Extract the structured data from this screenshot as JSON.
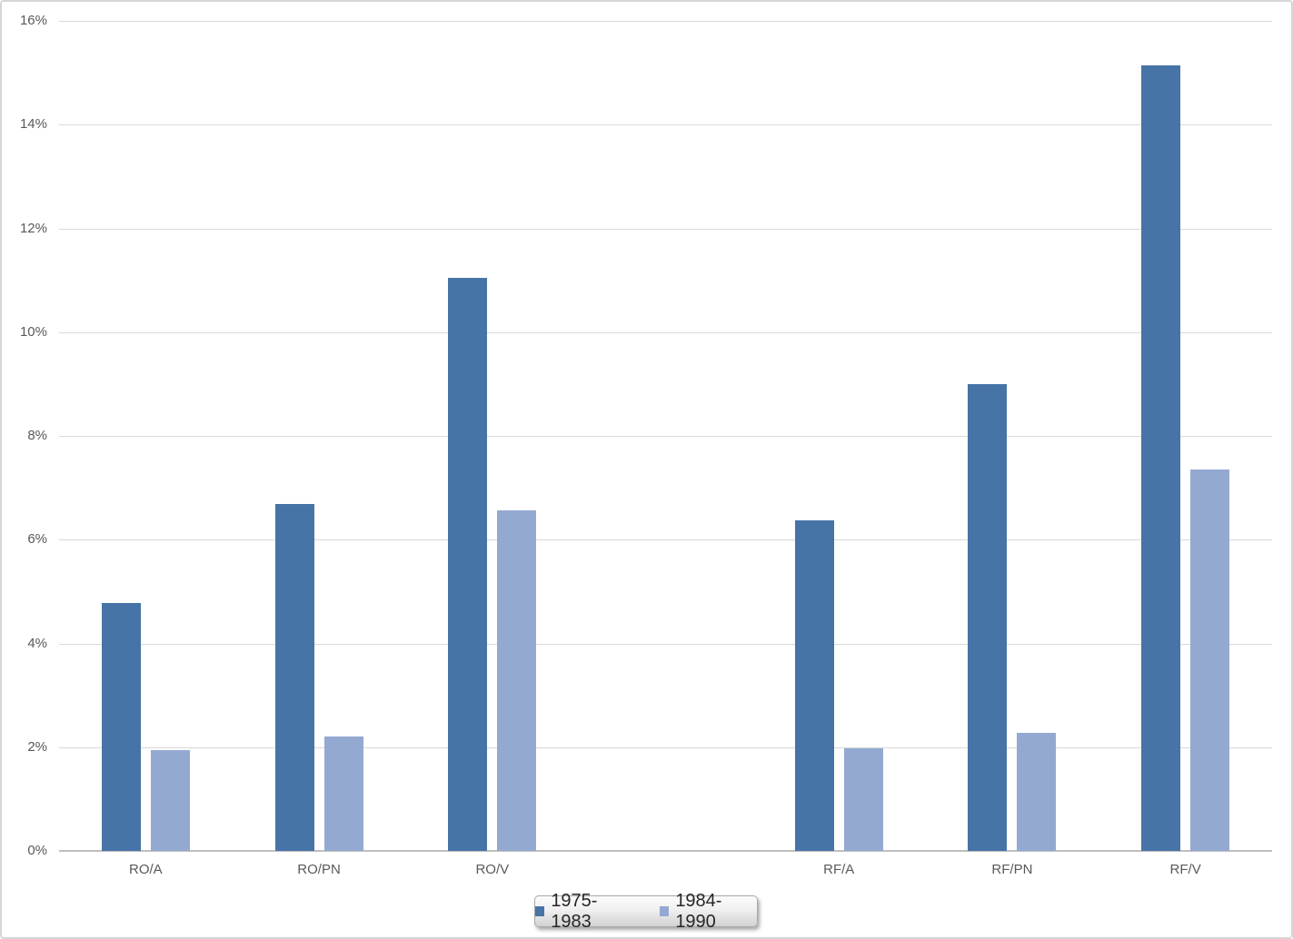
{
  "chart_data": {
    "type": "bar",
    "title": "",
    "xlabel": "",
    "ylabel": "",
    "categories": [
      "RO/A",
      "RO/PN",
      "RO/V",
      "RF/A",
      "RF/PN",
      "RF/V"
    ],
    "series": [
      {
        "name": "1975-1983",
        "color": "#4674A7",
        "values": [
          4.78,
          6.69,
          11.05,
          6.38,
          8.99,
          15.14
        ]
      },
      {
        "name": "1984-1990",
        "color": "#94A9D1",
        "values": [
          1.95,
          2.2,
          6.56,
          1.97,
          2.28,
          7.35
        ]
      }
    ],
    "ylim": [
      0,
      16
    ],
    "y_tick_step": 2,
    "y_tick_labels": [
      "0%",
      "2%",
      "4%",
      "6%",
      "8%",
      "10%",
      "12%",
      "14%",
      "16%"
    ],
    "grid": "horizontal",
    "legend_position": "bottom",
    "group_gap_after_index": 2
  },
  "legend": {
    "items": [
      {
        "label": "1975-1983",
        "color": "#4674A7"
      },
      {
        "label": "1984-1990",
        "color": "#94A9D1"
      }
    ]
  },
  "colors": {
    "series_1": "#4674A7",
    "series_2": "#94A9D1",
    "gridline": "#D9D9D9",
    "axis_line": "#BFBFBF",
    "tick_label_text": "#595959",
    "legend_text": "#262626",
    "frame_border": "#D6D6D6",
    "background": "#FFFFFF"
  }
}
